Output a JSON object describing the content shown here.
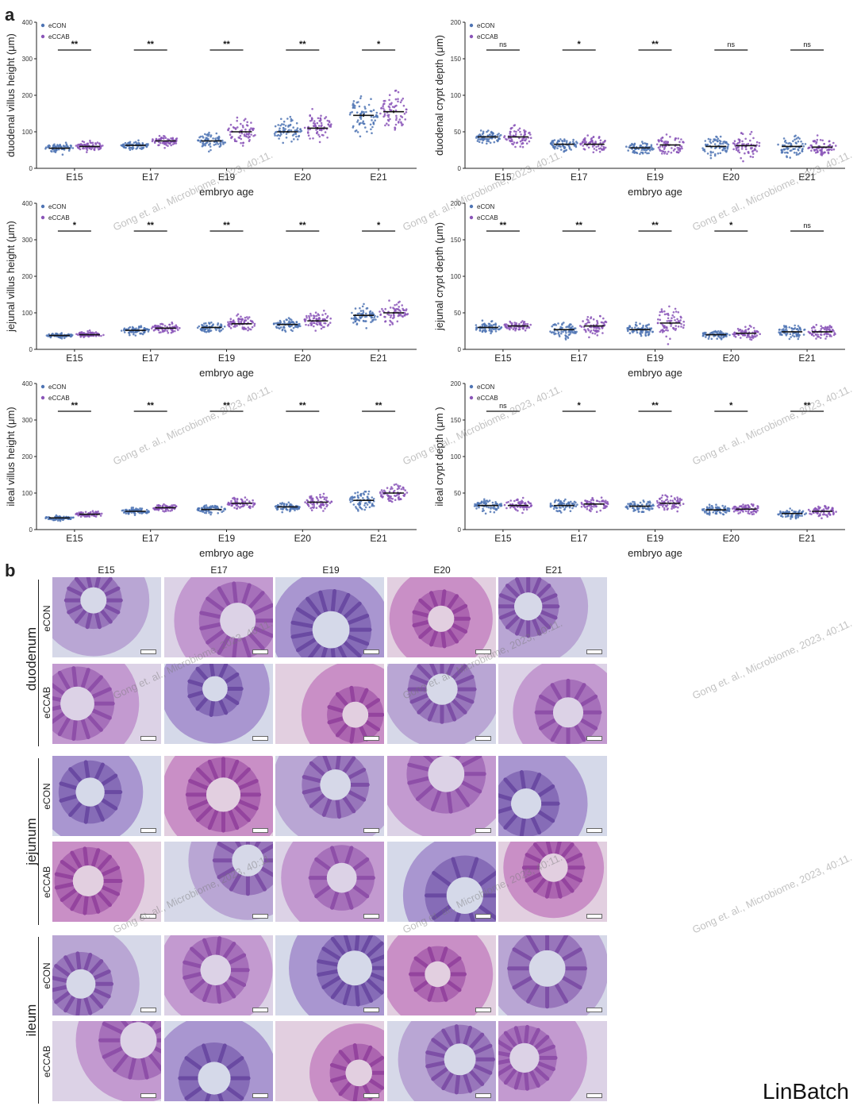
{
  "panel_a_label": "a",
  "panel_b_label": "b",
  "brand": "LinBatch",
  "watermark": "Gong et. al., Microbiome, 2023, 40:11.",
  "legend": [
    "eCON",
    "eCCAB"
  ],
  "colors": {
    "eCON": "#4f74b4",
    "eCCAB": "#8a55b8",
    "mean": "#111111"
  },
  "chart_data": [
    {
      "type": "scatter",
      "ylabel": "duodenal villus height (μm)",
      "xlabel": "embryo age",
      "categories": [
        "E15",
        "E17",
        "E19",
        "E20",
        "E21"
      ],
      "ylim": [
        0,
        400
      ],
      "yticks": [
        0,
        100,
        200,
        300,
        400
      ],
      "series": [
        {
          "name": "eCON",
          "means": [
            55,
            63,
            75,
            100,
            145
          ],
          "spreads": [
            12,
            10,
            20,
            30,
            50
          ]
        },
        {
          "name": "eCCAB",
          "means": [
            60,
            75,
            100,
            110,
            155
          ],
          "spreads": [
            12,
            12,
            30,
            35,
            45
          ]
        }
      ],
      "significance": [
        "**",
        "**",
        "**",
        "**",
        "*"
      ]
    },
    {
      "type": "scatter",
      "ylabel": "duodenal crypt depth (μm)",
      "xlabel": "embryo age",
      "categories": [
        "E15",
        "E17",
        "E19",
        "E20",
        "E21"
      ],
      "ylim": [
        0,
        200
      ],
      "yticks": [
        0,
        50,
        100,
        150,
        200
      ],
      "series": [
        {
          "name": "eCON",
          "means": [
            43,
            33,
            28,
            30,
            30
          ],
          "spreads": [
            8,
            8,
            8,
            12,
            12
          ]
        },
        {
          "name": "eCCAB",
          "means": [
            43,
            33,
            32,
            31,
            29
          ],
          "spreads": [
            10,
            10,
            12,
            14,
            10
          ]
        }
      ],
      "significance": [
        "ns",
        "*",
        "**",
        "ns",
        "ns"
      ]
    },
    {
      "type": "scatter",
      "ylabel": "jejunal villus height (μm)",
      "xlabel": "embryo age",
      "categories": [
        "E15",
        "E17",
        "E19",
        "E20",
        "E21"
      ],
      "ylim": [
        0,
        400
      ],
      "yticks": [
        0,
        100,
        200,
        300,
        400
      ],
      "series": [
        {
          "name": "eCON",
          "means": [
            38,
            52,
            60,
            68,
            93
          ],
          "spreads": [
            6,
            10,
            12,
            14,
            28
          ]
        },
        {
          "name": "eCCAB",
          "means": [
            40,
            58,
            70,
            78,
            100
          ],
          "spreads": [
            7,
            12,
            22,
            22,
            25
          ]
        }
      ],
      "significance": [
        "*",
        "**",
        "**",
        "**",
        "*"
      ]
    },
    {
      "type": "scatter",
      "ylabel": "jejunal crypt depth (μm)",
      "xlabel": "embryo age",
      "categories": [
        "E15",
        "E17",
        "E19",
        "E20",
        "E21"
      ],
      "ylim": [
        0,
        200
      ],
      "yticks": [
        0,
        50,
        100,
        150,
        200
      ],
      "series": [
        {
          "name": "eCON",
          "means": [
            30,
            27,
            27,
            20,
            24
          ],
          "spreads": [
            6,
            10,
            8,
            5,
            8
          ]
        },
        {
          "name": "eCCAB",
          "means": [
            32,
            32,
            36,
            22,
            24
          ],
          "spreads": [
            6,
            12,
            20,
            7,
            8
          ]
        }
      ],
      "significance": [
        "**",
        "**",
        "**",
        "*",
        "ns"
      ]
    },
    {
      "type": "scatter",
      "ylabel": "ileal villus height (μm)",
      "xlabel": "embryo age",
      "categories": [
        "E15",
        "E17",
        "E19",
        "E20",
        "E21"
      ],
      "ylim": [
        0,
        400
      ],
      "yticks": [
        0,
        100,
        200,
        300,
        400
      ],
      "series": [
        {
          "name": "eCON",
          "means": [
            32,
            50,
            55,
            62,
            80
          ],
          "spreads": [
            6,
            8,
            10,
            10,
            22
          ]
        },
        {
          "name": "eCCAB",
          "means": [
            42,
            60,
            72,
            75,
            100
          ],
          "spreads": [
            8,
            8,
            15,
            18,
            22
          ]
        }
      ],
      "significance": [
        "**",
        "**",
        "**",
        "**",
        "**"
      ]
    },
    {
      "type": "scatter",
      "ylabel": "ileal crypt depth (μm )",
      "xlabel": "embryo age",
      "categories": [
        "E15",
        "E17",
        "E19",
        "E20",
        "E21"
      ],
      "ylim": [
        0,
        200
      ],
      "yticks": [
        0,
        50,
        100,
        150,
        200
      ],
      "series": [
        {
          "name": "eCON",
          "means": [
            33,
            33,
            32,
            27,
            22
          ],
          "spreads": [
            7,
            8,
            8,
            6,
            6
          ]
        },
        {
          "name": "eCCAB",
          "means": [
            33,
            35,
            36,
            28,
            25
          ],
          "spreads": [
            7,
            9,
            10,
            7,
            7
          ]
        }
      ],
      "significance": [
        "ns",
        "*",
        "**",
        "*",
        "**"
      ]
    }
  ],
  "histology": {
    "columns": [
      "E15",
      "E17",
      "E19",
      "E20",
      "E21"
    ],
    "segments": [
      "duodenum",
      "jejunum",
      "ileum"
    ],
    "groups": [
      "eCON",
      "eCCAB"
    ]
  }
}
